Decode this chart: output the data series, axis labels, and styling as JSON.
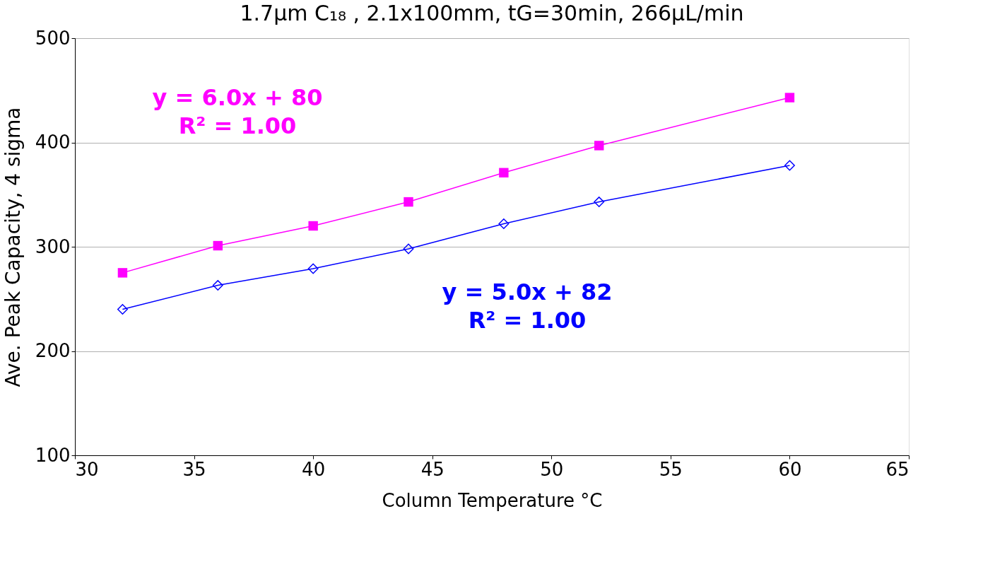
{
  "chart_data": {
    "type": "line",
    "title": "1.7µm C₁₈ , 2.1x100mm, tG=30min, 266µL/min",
    "xlabel": "Column Temperature °C",
    "ylabel": "Ave. Peak Capacity, 4 sigma",
    "x": [
      32,
      36,
      40,
      44,
      48,
      52,
      60
    ],
    "series": [
      {
        "color": "#ff00ff",
        "marker": "square",
        "values": [
          275,
          301,
          320,
          343,
          371,
          397,
          443
        ]
      },
      {
        "color": "#0000ff",
        "marker": "diamond",
        "values": [
          240,
          263,
          279,
          298,
          322,
          343,
          378
        ]
      }
    ],
    "annotations": [
      "y = 6.0x + 80\nR² = 1.00",
      "y = 5.0x + 82\nR² = 1.00"
    ],
    "xlim": [
      30,
      65
    ],
    "xticks": [
      30,
      35,
      40,
      45,
      50,
      55,
      60,
      65
    ],
    "ylim": [
      100,
      500
    ],
    "yticks": [
      100,
      200,
      300,
      400,
      500
    ],
    "grid": "y"
  }
}
